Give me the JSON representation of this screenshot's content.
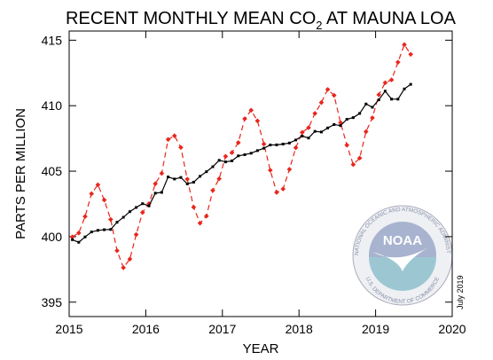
{
  "chart_data": {
    "type": "line",
    "title": [
      "RECENT MONTHLY MEAN CO",
      "2",
      " AT MAUNA LOA"
    ],
    "xlabel": "YEAR",
    "ylabel": "PARTS PER MILLION",
    "annotation": "July 2019",
    "logo": {
      "name": "NOAA",
      "top_text": "NATIONAL OCEANIC AND ATMOSPHERIC ADMINISTRATION",
      "bottom_text": "U.S. DEPARTMENT OF COMMERCE"
    },
    "xlim": [
      2015,
      2020
    ],
    "xticks": [
      2015,
      2016,
      2017,
      2018,
      2019,
      2020
    ],
    "ylim": [
      393.9,
      415.7
    ],
    "yticks": [
      395,
      400,
      405,
      410,
      415
    ],
    "x": [
      2015.042,
      2015.125,
      2015.208,
      2015.292,
      2015.375,
      2015.458,
      2015.542,
      2015.625,
      2015.708,
      2015.792,
      2015.875,
      2015.958,
      2016.042,
      2016.125,
      2016.208,
      2016.292,
      2016.375,
      2016.458,
      2016.542,
      2016.625,
      2016.708,
      2016.792,
      2016.875,
      2016.958,
      2017.042,
      2017.125,
      2017.208,
      2017.292,
      2017.375,
      2017.458,
      2017.542,
      2017.625,
      2017.708,
      2017.792,
      2017.875,
      2017.958,
      2018.042,
      2018.125,
      2018.208,
      2018.292,
      2018.375,
      2018.458,
      2018.542,
      2018.625,
      2018.708,
      2018.792,
      2018.875,
      2018.958,
      2019.042,
      2019.125,
      2019.208,
      2019.292,
      2019.375,
      2019.458
    ],
    "series": [
      {
        "color": "#e8261d",
        "dashed": true,
        "marker": "diamond",
        "values": [
          399.98,
          400.28,
          401.54,
          403.28,
          403.96,
          402.8,
          401.31,
          398.93,
          397.63,
          398.29,
          400.16,
          401.85,
          402.52,
          404.04,
          404.83,
          407.42,
          407.7,
          406.81,
          404.39,
          402.25,
          401.03,
          401.57,
          403.53,
          404.42,
          406.13,
          406.42,
          407.18,
          409.0,
          409.65,
          408.84,
          407.07,
          405.07,
          403.38,
          403.64,
          405.14,
          406.79,
          407.96,
          408.32,
          409.41,
          410.24,
          411.24,
          410.79,
          408.71,
          406.99,
          405.51,
          406.0,
          408.02,
          409.07,
          410.83,
          411.75,
          411.97,
          413.32,
          414.66,
          413.92
        ]
      },
      {
        "color": "#000000",
        "dashed": false,
        "marker": "square",
        "values": [
          399.77,
          399.57,
          399.98,
          400.36,
          400.48,
          400.53,
          400.55,
          401.1,
          401.48,
          401.91,
          402.23,
          402.52,
          402.35,
          403.32,
          403.38,
          404.56,
          404.4,
          404.52,
          404.03,
          404.16,
          404.61,
          404.96,
          405.34,
          405.83,
          405.71,
          405.79,
          406.17,
          406.26,
          406.37,
          406.57,
          406.75,
          407.0,
          407.01,
          407.07,
          407.15,
          407.38,
          407.68,
          407.53,
          408.04,
          407.99,
          408.3,
          408.56,
          408.48,
          408.96,
          409.09,
          409.41,
          410.13,
          409.88,
          410.45,
          411.11,
          410.5,
          410.5,
          411.28,
          411.63
        ]
      }
    ]
  }
}
